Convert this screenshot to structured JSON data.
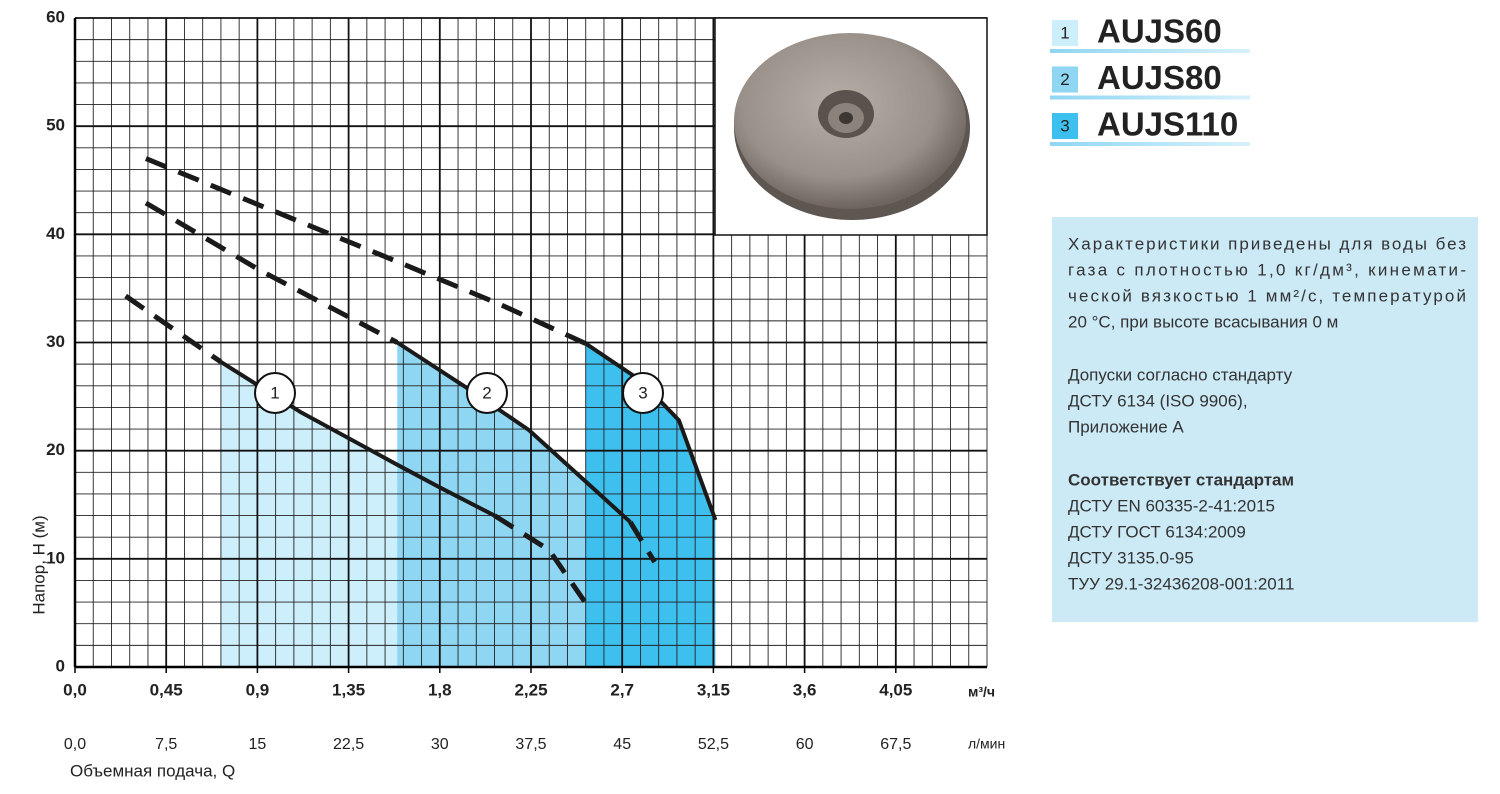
{
  "chart_data": {
    "type": "line",
    "xlabel": "Объемная подача, Q",
    "ylabel": "Напор, Н (м)",
    "xunit": "м³/ч",
    "x2unit": "л/мин",
    "xlim": [
      0,
      4.5
    ],
    "xticks": [
      {
        "value": 0,
        "label": "0,0"
      },
      {
        "value": 0.45,
        "label": "0,45"
      },
      {
        "value": 0.9,
        "label": "0,9"
      },
      {
        "value": 1.35,
        "label": "1,35"
      },
      {
        "value": 1.8,
        "label": "1,8"
      },
      {
        "value": 2.25,
        "label": "2,25"
      },
      {
        "value": 2.7,
        "label": "2,7"
      },
      {
        "value": 3.15,
        "label": "3,15"
      },
      {
        "value": 3.6,
        "label": "3,6"
      },
      {
        "value": 4.05,
        "label": "4,05"
      }
    ],
    "x2lim": [
      0,
      75
    ],
    "x2ticks": [
      {
        "value": 0,
        "label": "0,0"
      },
      {
        "value": 7.5,
        "label": "7,5"
      },
      15,
      {
        "value": 22.5,
        "label": "22,5"
      },
      30,
      {
        "value": 37.5,
        "label": "37,5"
      },
      45,
      {
        "value": 52.5,
        "label": "52,5"
      },
      60,
      {
        "value": 67.5,
        "label": "67,5"
      }
    ],
    "ylim": [
      0,
      60
    ],
    "yticks": [
      0,
      10,
      20,
      30,
      40,
      50,
      60
    ],
    "grid": true,
    "x_minor_step": 0.09,
    "y_minor_step": 2,
    "series": [
      {
        "name": "AUJS60",
        "label": "1",
        "color": "#cdeefb",
        "segments": [
          {
            "style": "dashed",
            "x": [
              0.25,
              0.72
            ],
            "y": [
              34.3,
              28.2
            ]
          },
          {
            "style": "solid",
            "x": [
              0.72,
              1.11,
              1.6,
              1.8,
              2.07
            ],
            "y": [
              28.2,
              23.6,
              18.6,
              16.6,
              14.0
            ]
          },
          {
            "style": "dashed",
            "x": [
              2.07,
              2.34,
              2.52
            ],
            "y": [
              14.0,
              10.8,
              5.9
            ]
          }
        ]
      },
      {
        "name": "AUJS80",
        "label": "2",
        "color": "#8fd6f3",
        "segments": [
          {
            "style": "dashed",
            "x": [
              0.35,
              0.91,
              1.59
            ],
            "y": [
              42.9,
              36.7,
              30.0
            ]
          },
          {
            "style": "solid",
            "x": [
              1.59,
              1.95,
              2.24,
              2.54,
              2.74
            ],
            "y": [
              30.0,
              25.6,
              21.9,
              16.8,
              13.4
            ]
          },
          {
            "style": "dashed",
            "x": [
              2.74,
              2.86
            ],
            "y": [
              13.4,
              9.7
            ]
          }
        ]
      },
      {
        "name": "AUJS110",
        "label": "3",
        "color": "#3ec0ee",
        "segments": [
          {
            "style": "dashed",
            "x": [
              0.35,
              0.91,
              1.6,
              2.1,
              2.52
            ],
            "y": [
              47.0,
              42.7,
              37.4,
              33.5,
              29.9
            ]
          },
          {
            "style": "solid",
            "x": [
              2.52,
              2.79,
              2.98,
              3.16
            ],
            "y": [
              29.9,
              26.5,
              22.8,
              13.6
            ]
          }
        ]
      }
    ]
  },
  "info": {
    "paragraph1": [
      "Характеристики приведены для воды без",
      "газа с плотностью 1,0 кг/дм³, кинемати-",
      "ческой вязкостью 1 мм²/с, температурой",
      "20 °С, при высоте всасывания 0 м"
    ],
    "paragraph2": [
      "Допуски согласно стандарту",
      "ДСТУ 6134 (ISO 9906),",
      "Приложение А"
    ],
    "heading": "Соответствует стандартам",
    "paragraph3": [
      "ДСТУ EN 60335-2-41:2015",
      "ДСТУ ГОСТ 6134:2009",
      "ДСТУ 3135.0-95",
      "ТУУ 29.1-32436208-001:2011"
    ]
  }
}
